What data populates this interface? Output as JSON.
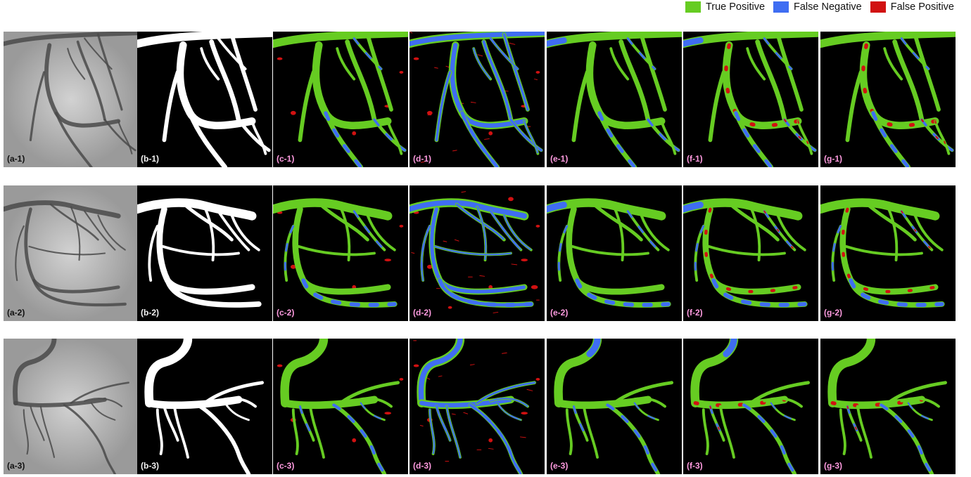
{
  "legend": [
    {
      "label": "True Positive",
      "color": "#66cc22"
    },
    {
      "label": "False Negative",
      "color": "#3f6df2"
    },
    {
      "label": "False Positive",
      "color": "#d11111"
    }
  ],
  "rows": [
    {
      "labels": [
        "(a-1)",
        "(b-1)",
        "(c-1)",
        "(d-1)",
        "(e-1)",
        "(f-1)",
        "(g-1)"
      ]
    },
    {
      "labels": [
        "(a-2)",
        "(b-2)",
        "(c-2)",
        "(d-2)",
        "(e-2)",
        "(f-2)",
        "(g-2)"
      ]
    },
    {
      "labels": [
        "(a-3)",
        "(b-3)",
        "(c-3)",
        "(d-3)",
        "(e-3)",
        "(f-3)",
        "(g-3)"
      ]
    }
  ]
}
